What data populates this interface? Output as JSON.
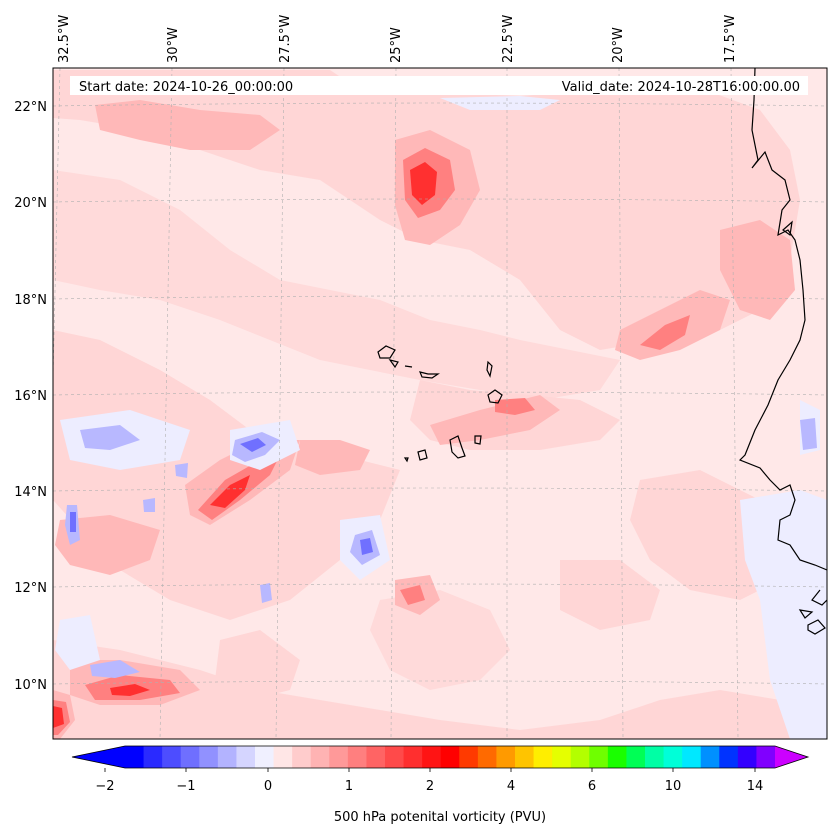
{
  "header": {
    "start_date": "Start date: 2024-10-26_00:00:00",
    "valid_date": "Valid_date: 2024-10-28T16:00:00.00"
  },
  "axes": {
    "lon_labels": [
      "32.5°W",
      "30°W",
      "27.5°W",
      "25°W",
      "22.5°W",
      "20°W",
      "17.5°W"
    ],
    "lat_labels": [
      "22°N",
      "20°N",
      "18°N",
      "16°N",
      "14°N",
      "12°N",
      "10°N"
    ]
  },
  "colorbar": {
    "label": "500 hPa potenital vorticity (PVU)",
    "ticks": [
      "−2",
      "−1",
      "0",
      "1",
      "2",
      "4",
      "6",
      "10",
      "14"
    ],
    "colors": [
      "#0000ff",
      "#2a2aff",
      "#4d4dff",
      "#6f6fff",
      "#9191ff",
      "#b3b3ff",
      "#d5d5ff",
      "#f0f0ff",
      "#ffe6e6",
      "#ffcccc",
      "#ffb3b3",
      "#ff9999",
      "#ff7f7f",
      "#ff6464",
      "#ff4a4a",
      "#ff2f2f",
      "#ff1414",
      "#ff0000",
      "#ff3a00",
      "#ff6a00",
      "#ff9a00",
      "#ffc400",
      "#ffee00",
      "#e5ff00",
      "#b3ff00",
      "#6fff00",
      "#1aff00",
      "#00ff55",
      "#00ffa5",
      "#00ffd8",
      "#00e8ff",
      "#0090ff",
      "#0033ff",
      "#3300ff",
      "#8000ff"
    ],
    "under_color": "#0000ff",
    "over_color": "#cc00ff"
  },
  "field_colors": {
    "background": "#ffe8e8",
    "light": "#ffd6d6",
    "medium": "#ffb8b8",
    "strong": "#ff8080",
    "max": "#ff3030",
    "neg_light": "#ededff",
    "neg_medium": "#b8b8ff",
    "neg_strong": "#7070ff"
  }
}
